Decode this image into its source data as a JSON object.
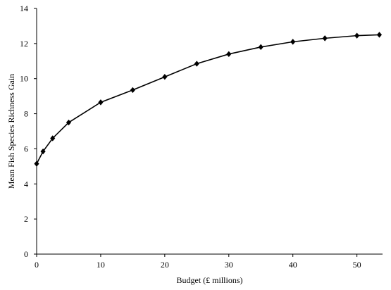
{
  "chart_data": {
    "type": "line",
    "title": "",
    "xlabel": "Budget (£ millions)",
    "ylabel": "Mean Fish Species Richness  Gain",
    "xlim": [
      0,
      54
    ],
    "ylim": [
      0,
      14
    ],
    "xticks": [
      0,
      10,
      20,
      30,
      40,
      50
    ],
    "yticks": [
      0,
      2,
      4,
      6,
      8,
      10,
      12,
      14
    ],
    "grid": false,
    "legend": "none",
    "marker": "diamond",
    "color": "#000000",
    "series": [
      {
        "x": [
          0,
          1,
          2.5,
          5,
          10,
          15,
          20,
          25,
          30,
          35,
          40,
          45,
          50,
          53.5
        ],
        "y": [
          5.15,
          5.85,
          6.6,
          7.5,
          8.65,
          9.35,
          10.1,
          10.85,
          11.4,
          11.8,
          12.1,
          12.3,
          12.45,
          12.5
        ]
      }
    ]
  }
}
